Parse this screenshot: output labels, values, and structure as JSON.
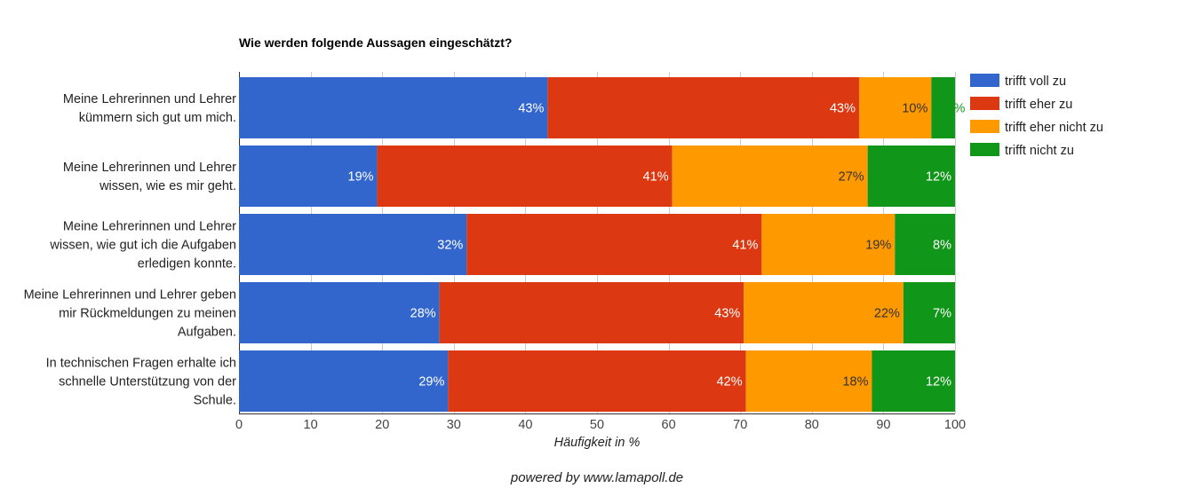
{
  "chart_data": {
    "type": "bar",
    "orientation": "horizontal",
    "stacked": true,
    "title": "Wie werden folgende Aussagen eingeschätzt?",
    "xlabel": "Häufigkeit in %",
    "xlim": [
      0,
      100
    ],
    "xticks": [
      0,
      10,
      20,
      30,
      40,
      50,
      60,
      70,
      80,
      90,
      100
    ],
    "legend_position": "right",
    "categories": [
      [
        "Meine Lehrerinnen und Lehrer",
        "kümmern sich gut um mich."
      ],
      [
        "Meine Lehrerinnen und Lehrer",
        "wissen, wie es mir geht."
      ],
      [
        "Meine Lehrerinnen und Lehrer",
        "wissen, wie gut ich die Aufgaben",
        "erledigen konnte."
      ],
      [
        "Meine Lehrerinnen und Lehrer geben",
        "mir Rückmeldungen zu meinen",
        "Aufgaben."
      ],
      [
        "In technischen Fragen erhalte ich",
        "schnelle Unterstützung von der",
        "Schule."
      ]
    ],
    "series": [
      {
        "name": "trifft voll zu",
        "color": "#3366cc",
        "label_color": "#ffffff",
        "values": [
          43.1,
          19.3,
          31.8,
          28.0,
          29.2
        ],
        "labels": [
          "43%",
          "19%",
          "32%",
          "28%",
          "29%"
        ]
      },
      {
        "name": "trifft eher zu",
        "color": "#dc3912",
        "label_color": "#ffffff",
        "values": [
          43.5,
          41.2,
          41.2,
          42.5,
          41.6
        ],
        "labels": [
          "43%",
          "41%",
          "41%",
          "43%",
          "42%"
        ]
      },
      {
        "name": "trifft eher nicht zu",
        "color": "#ff9900",
        "label_color": "#333333",
        "values": [
          10.1,
          27.3,
          18.6,
          22.3,
          17.6
        ],
        "labels": [
          "10%",
          "27%",
          "19%",
          "22%",
          "18%"
        ]
      },
      {
        "name": "trifft nicht zu",
        "color": "#109618",
        "label_color": "#ffffff",
        "values": [
          3.3,
          12.2,
          8.4,
          7.2,
          11.6
        ],
        "labels": [
          "3%",
          "12%",
          "8%",
          "7%",
          "12%"
        ]
      }
    ]
  },
  "footer": "powered by www.lamapoll.de"
}
